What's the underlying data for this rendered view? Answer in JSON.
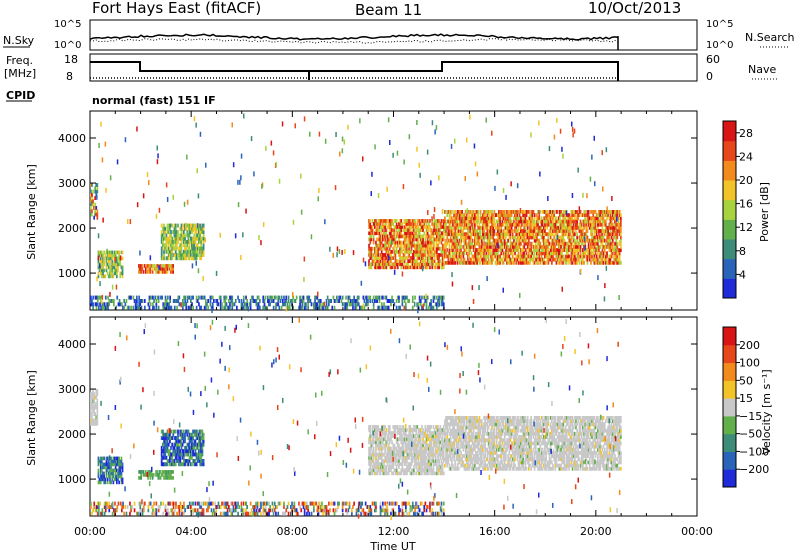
{
  "header": {
    "title": "Fort Hays East (fitACF)",
    "beam": "Beam 11",
    "date": "10/Oct/2013"
  },
  "status_panels": {
    "nsky_label": "N.Sky",
    "nsearch_label": "N.Search",
    "noise_ticks_left": [
      "10^5",
      "10^0"
    ],
    "noise_ticks_right": [
      "10^5",
      "10^0"
    ],
    "freq_label": "Freq.",
    "freq_unit": "[MHz]",
    "freq_ticks": [
      "18",
      "8"
    ],
    "nave_label": "Nave",
    "nave_ticks": [
      "60",
      "0"
    ],
    "cpid_label": "CPID",
    "cpid_value": "normal (fast) 151 IF"
  },
  "chart_data": [
    {
      "type": "heatmap",
      "name": "power",
      "ylabel": "Slant Range [km]",
      "xlabel": "",
      "x_range_hours": [
        0,
        24
      ],
      "ylim": [
        180,
        4600
      ],
      "yticks": [
        "1000",
        "2000",
        "3000",
        "4000"
      ],
      "colorbar": {
        "label": "Power [dB]",
        "ticks": [
          "4",
          "8",
          "12",
          "16",
          "20",
          "24",
          "28"
        ],
        "range": [
          0,
          30
        ],
        "colors": [
          "#1f2ad8",
          "#2a64b8",
          "#3d8c78",
          "#62b04c",
          "#a8d33e",
          "#f2c42a",
          "#f28a1c",
          "#e6461a",
          "#d81414"
        ]
      },
      "regions": [
        {
          "x": [
            0.0,
            0.3
          ],
          "y": [
            2200,
            3000
          ],
          "level": "mixed"
        },
        {
          "x": [
            0.3,
            1.3
          ],
          "y": [
            900,
            1500
          ],
          "level": "medium"
        },
        {
          "x": [
            1.9,
            3.3
          ],
          "y": [
            1000,
            1200
          ],
          "level": "high"
        },
        {
          "x": [
            2.8,
            4.5
          ],
          "y": [
            1300,
            2100
          ],
          "level": "medium"
        },
        {
          "x": [
            11.0,
            14.0
          ],
          "y": [
            1100,
            2200
          ],
          "level": "high"
        },
        {
          "x": [
            14.0,
            21.0
          ],
          "y": [
            1200,
            2400
          ],
          "level": "high"
        },
        {
          "x": [
            0.0,
            14.0
          ],
          "y": [
            200,
            500
          ],
          "level": "low"
        }
      ]
    },
    {
      "type": "heatmap",
      "name": "velocity",
      "ylabel": "Slant Range [km]",
      "xlabel": "Time UT",
      "x_range_hours": [
        0,
        24
      ],
      "xticks": [
        "00:00",
        "04:00",
        "08:00",
        "12:00",
        "16:00",
        "20:00",
        "00:00"
      ],
      "ylim": [
        180,
        4600
      ],
      "yticks": [
        "1000",
        "2000",
        "3000",
        "4000"
      ],
      "colorbar": {
        "label": "Velocity [m s⁻¹]",
        "ticks": [
          "200",
          "100",
          "50",
          "15",
          "−15",
          "−50",
          "−100",
          "−200"
        ],
        "colors": [
          "#1f2ad8",
          "#2a64b8",
          "#3d8c78",
          "#62b04c",
          "#c8c8c8",
          "#f2c42a",
          "#f28a1c",
          "#e6461a",
          "#d81414"
        ]
      },
      "regions": [
        {
          "x": [
            0.0,
            0.3
          ],
          "y": [
            2200,
            3000
          ],
          "level": "ground"
        },
        {
          "x": [
            0.3,
            1.3
          ],
          "y": [
            900,
            1500
          ],
          "level": "toward"
        },
        {
          "x": [
            1.9,
            3.3
          ],
          "y": [
            1000,
            1200
          ],
          "level": "slow_toward"
        },
        {
          "x": [
            2.8,
            4.5
          ],
          "y": [
            1300,
            2100
          ],
          "level": "toward"
        },
        {
          "x": [
            11.0,
            14.0
          ],
          "y": [
            1100,
            2200
          ],
          "level": "ground"
        },
        {
          "x": [
            14.0,
            21.0
          ],
          "y": [
            1200,
            2400
          ],
          "level": "ground"
        },
        {
          "x": [
            0.0,
            14.0
          ],
          "y": [
            200,
            500
          ],
          "level": "mixed"
        }
      ]
    }
  ]
}
